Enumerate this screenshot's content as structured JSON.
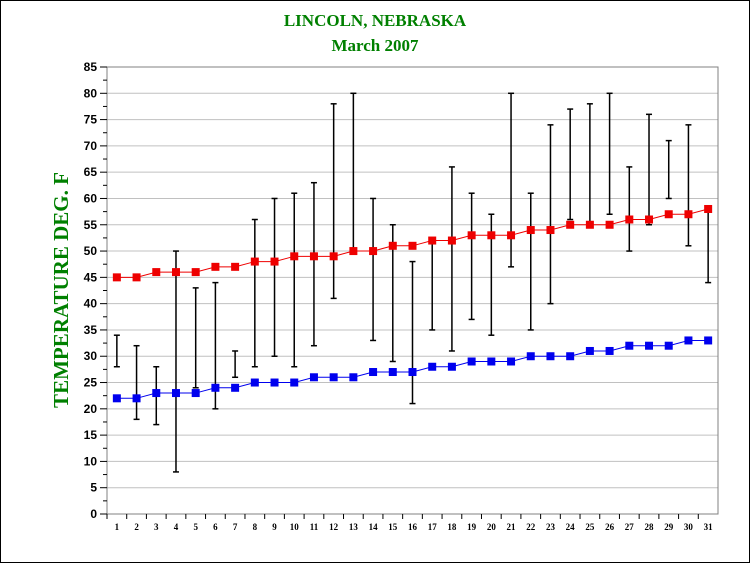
{
  "chart_data": {
    "type": "line",
    "title": "LINCOLN, NEBRASKA",
    "subtitle": "March  2007",
    "xlabel": "",
    "ylabel": "TEMPERATURE DEG. F",
    "ylim": [
      0,
      85
    ],
    "y_ticks": [
      0,
      5,
      10,
      15,
      20,
      25,
      30,
      35,
      40,
      45,
      50,
      55,
      60,
      65,
      70,
      75,
      80,
      85
    ],
    "x_ticks": [
      "1",
      "2",
      "3",
      "4",
      "5",
      "6",
      "7",
      "8",
      "9",
      "10",
      "11",
      "12",
      "13",
      "14",
      "15",
      "16",
      "17",
      "18",
      "19",
      "20",
      "21",
      "22",
      "23",
      "24",
      "25",
      "26",
      "27",
      "28",
      "29",
      "30",
      "31"
    ],
    "grid": true,
    "colors": {
      "title": "#008000",
      "ylabel": "#008000",
      "series_upper": "#ee0000",
      "series_lower": "#0000ee",
      "range_bars": "#000000",
      "grid": "#c0c0c0"
    },
    "series": [
      {
        "values": [
          45,
          45,
          46,
          46,
          46,
          47,
          47,
          48,
          48,
          49,
          49,
          49,
          50,
          50,
          51,
          51,
          52,
          52,
          53,
          53,
          53,
          54,
          54,
          55,
          55,
          55,
          56,
          56,
          57,
          57,
          58
        ]
      },
      {
        "values": [
          22,
          22,
          23,
          23,
          23,
          24,
          24,
          25,
          25,
          25,
          26,
          26,
          26,
          27,
          27,
          27,
          28,
          28,
          29,
          29,
          29,
          30,
          30,
          30,
          31,
          31,
          32,
          32,
          32,
          33,
          33
        ]
      }
    ],
    "ranges": {
      "low": [
        28,
        18,
        17,
        8,
        24,
        20,
        26,
        28,
        30,
        28,
        32,
        41,
        50,
        33,
        29,
        21,
        35,
        31,
        37,
        34,
        47,
        35,
        40,
        56,
        55,
        57,
        50,
        55,
        60,
        51,
        44
      ],
      "high": [
        34,
        32,
        28,
        50,
        43,
        44,
        31,
        56,
        60,
        61,
        63,
        78,
        80,
        60,
        55,
        48,
        52,
        66,
        61,
        57,
        80,
        61,
        74,
        77,
        78,
        80,
        66,
        76,
        71,
        74,
        58
      ]
    }
  }
}
